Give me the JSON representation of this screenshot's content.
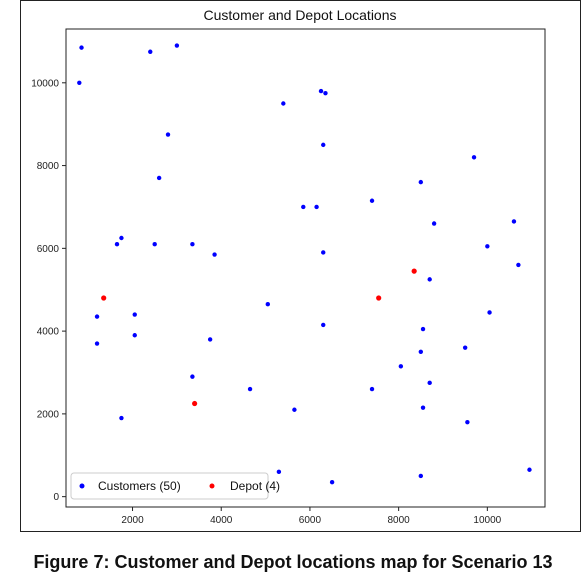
{
  "caption": "Figure 7: Customer and Depot locations map for Scenario 13",
  "chart_data": {
    "type": "scatter",
    "title": "Customer and Depot Locations",
    "xlabel": "",
    "ylabel": "",
    "xlim": [
      500,
      11300
    ],
    "ylim": [
      -250,
      11300
    ],
    "xticks": [
      2000,
      4000,
      6000,
      8000,
      10000
    ],
    "yticks": [
      0,
      2000,
      4000,
      6000,
      8000,
      10000
    ],
    "grid": false,
    "legend_position": "bottom-left",
    "series": [
      {
        "name": "Customers (50)",
        "color": "#0000ff",
        "points": [
          [
            850,
            10850
          ],
          [
            2400,
            10750
          ],
          [
            3000,
            10900
          ],
          [
            800,
            10000
          ],
          [
            6250,
            9800
          ],
          [
            6350,
            9750
          ],
          [
            5400,
            9500
          ],
          [
            2800,
            8750
          ],
          [
            6300,
            8500
          ],
          [
            9700,
            8200
          ],
          [
            2600,
            7700
          ],
          [
            8500,
            7600
          ],
          [
            7400,
            7150
          ],
          [
            5850,
            7000
          ],
          [
            6150,
            7000
          ],
          [
            8800,
            6600
          ],
          [
            10600,
            6650
          ],
          [
            1750,
            6250
          ],
          [
            1650,
            6100
          ],
          [
            2500,
            6100
          ],
          [
            3350,
            6100
          ],
          [
            10000,
            6050
          ],
          [
            3850,
            5850
          ],
          [
            6300,
            5900
          ],
          [
            10700,
            5600
          ],
          [
            8700,
            5250
          ],
          [
            5050,
            4650
          ],
          [
            10050,
            4450
          ],
          [
            1200,
            4350
          ],
          [
            2050,
            4400
          ],
          [
            6300,
            4150
          ],
          [
            8550,
            4050
          ],
          [
            2050,
            3900
          ],
          [
            3750,
            3800
          ],
          [
            1200,
            3700
          ],
          [
            9500,
            3600
          ],
          [
            8500,
            3500
          ],
          [
            8050,
            3150
          ],
          [
            3350,
            2900
          ],
          [
            8700,
            2750
          ],
          [
            4650,
            2600
          ],
          [
            7400,
            2600
          ],
          [
            5650,
            2100
          ],
          [
            8550,
            2150
          ],
          [
            1750,
            1900
          ],
          [
            9550,
            1800
          ],
          [
            5300,
            600
          ],
          [
            10950,
            650
          ],
          [
            8500,
            500
          ],
          [
            6500,
            350
          ]
        ]
      },
      {
        "name": "Depot (4)",
        "color": "#ff0000",
        "points": [
          [
            1350,
            4800
          ],
          [
            8350,
            5450
          ],
          [
            7550,
            4800
          ],
          [
            3400,
            2250
          ]
        ]
      }
    ]
  }
}
